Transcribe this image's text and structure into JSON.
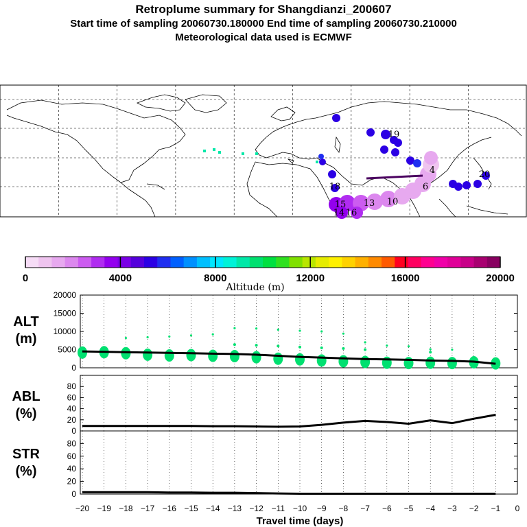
{
  "header": {
    "title": "Retroplume summary for Shangdianzi_200607",
    "subtitle": "Start time of sampling 20060730.180000     End time of sampling 20060730.210000",
    "met": "Meteorological data used is ECMWF"
  },
  "colorbar": {
    "label": "Altitude (m)",
    "ticks": [
      "0",
      "4000",
      "8000",
      "12000",
      "16000",
      "20000"
    ],
    "colors": [
      "#f6dcf6",
      "#efc4ef",
      "#e7a9ef",
      "#dc88ee",
      "#cc5cf0",
      "#b02cf0",
      "#9300ee",
      "#7a00e6",
      "#5500dc",
      "#2b00e4",
      "#1f2ef0",
      "#0060ff",
      "#0090ff",
      "#00bfff",
      "#00e6ff",
      "#00f2d8",
      "#00e8a8",
      "#00e070",
      "#00e040",
      "#30e020",
      "#80e000",
      "#b8e600",
      "#e6ec00",
      "#fff000",
      "#ffd200",
      "#ffb000",
      "#ff8a00",
      "#ff5a00",
      "#ff0020",
      "#ff0060",
      "#ff0090",
      "#f000a8",
      "#e00098",
      "#c80088",
      "#a80070",
      "#880060"
    ]
  },
  "map": {
    "plume_labels": [
      "15",
      "13",
      "10",
      "6",
      "4",
      "19",
      "20",
      "18",
      "16",
      "14"
    ]
  },
  "chart_data": [
    {
      "type": "line",
      "panel": "ALT",
      "ylabel": "ALT\n(m)",
      "ylim": [
        0,
        20000
      ],
      "yticks": [
        "0",
        "5000",
        "10000",
        "15000",
        "20000"
      ],
      "x": [
        -20,
        -19,
        -18,
        -17,
        -16,
        -15,
        -14,
        -13,
        -12,
        -11,
        -10,
        -9,
        -8,
        -7,
        -6,
        -5,
        -4,
        -3,
        -2,
        -1
      ],
      "series": [
        {
          "name": "mean altitude",
          "values": [
            4500,
            4400,
            4300,
            4200,
            4100,
            4000,
            3900,
            3800,
            3600,
            3300,
            3000,
            2800,
            2600,
            2400,
            2300,
            2200,
            2000,
            1900,
            1700,
            1100
          ]
        }
      ],
      "clusters": {
        "main": [
          4200,
          4300,
          4000,
          3600,
          3400,
          3500,
          3300,
          3200,
          2900,
          2500,
          2300,
          2000,
          1800,
          1600,
          1400,
          1300,
          1400,
          1300,
          1500,
          1200
        ],
        "upper": [
          null,
          null,
          8200,
          8400,
          8600,
          8900,
          9200,
          10900,
          10800,
          10500,
          10200,
          10000,
          9400,
          7000,
          6100,
          5900,
          5100,
          5000,
          null,
          null
        ],
        "mid": [
          null,
          null,
          null,
          null,
          null,
          null,
          null,
          6400,
          6200,
          6000,
          5700,
          5500,
          5300,
          5000,
          null,
          null,
          4300,
          null,
          null,
          null
        ]
      }
    },
    {
      "type": "line",
      "panel": "ABL",
      "ylabel": "ABL\n(%)",
      "ylim": [
        0,
        100
      ],
      "yticks": [
        "0",
        "20",
        "40",
        "60",
        "80"
      ],
      "x": [
        -20,
        -19,
        -18,
        -17,
        -16,
        -15,
        -14,
        -13,
        -12,
        -11,
        -10,
        -9,
        -8,
        -7,
        -6,
        -5,
        -4,
        -3,
        -2,
        -1
      ],
      "series": [
        {
          "name": "fraction in ABL",
          "values": [
            9,
            9,
            9,
            9,
            9,
            9,
            8.5,
            8.5,
            8,
            7.5,
            8,
            11,
            15,
            18,
            16,
            13,
            19,
            14,
            22,
            29
          ]
        }
      ]
    },
    {
      "type": "line",
      "panel": "STR",
      "ylabel": "STR\n(%)",
      "ylim": [
        0,
        100
      ],
      "yticks": [
        "0",
        "20",
        "40",
        "60",
        "80"
      ],
      "x": [
        -20,
        -19,
        -18,
        -17,
        -16,
        -15,
        -14,
        -13,
        -12,
        -11,
        -10,
        -9,
        -8,
        -7,
        -6,
        -5,
        -4,
        -3,
        -2,
        -1
      ],
      "series": [
        {
          "name": "fraction in stratosphere",
          "values": [
            3,
            3,
            3,
            3,
            2.5,
            2.5,
            2,
            2,
            1.5,
            1,
            0.5,
            0.5,
            0.5,
            0.5,
            0.5,
            0.5,
            0.5,
            0.5,
            0.5,
            0.5
          ]
        }
      ]
    }
  ],
  "xaxis": {
    "title": "Travel time (days)",
    "ticks": [
      "−20",
      "−19",
      "−18",
      "−17",
      "−16",
      "−15",
      "−14",
      "−13",
      "−12",
      "−11",
      "−10",
      "−9",
      "−8",
      "−7",
      "−6",
      "−5",
      "−4",
      "−3",
      "−2",
      "−1",
      "0"
    ]
  },
  "panels": {
    "alt_label_line1": "ALT",
    "alt_label_line2": "(m)",
    "abl_label_line1": "ABL",
    "abl_label_line2": "(%)",
    "str_label_line1": "STR",
    "str_label_line2": "(%)"
  }
}
